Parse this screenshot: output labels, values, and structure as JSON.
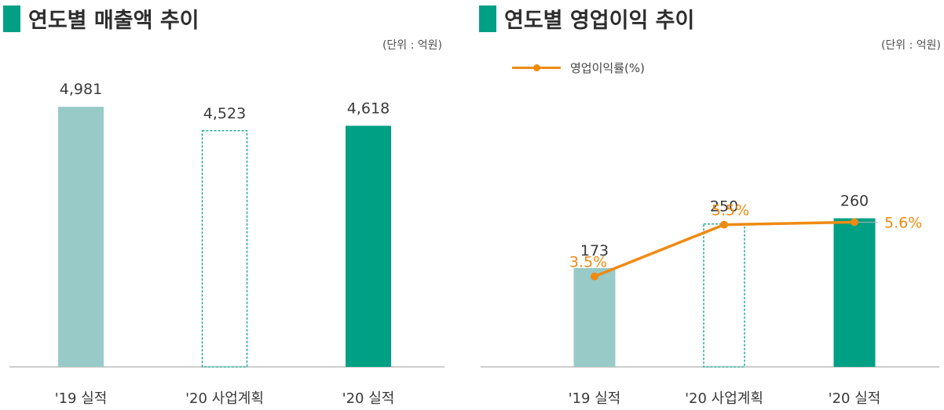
{
  "colors": {
    "accent": "#00a084",
    "bar_2019": "#98cac8",
    "bar_2020_actual": "#00a084",
    "plan_outline": "#00a084",
    "rate_line": "#ef8a11",
    "axis": "#9a9a9a"
  },
  "chart_data": [
    {
      "type": "bar",
      "title": "연도별 매출액 추이",
      "unit": "(단위 : 억원)",
      "categories": [
        "'19 실적",
        "'20 사업계획",
        "'20 실적"
      ],
      "values": [
        4981,
        4523,
        4618
      ],
      "value_labels": [
        "4,981",
        "4,523",
        "4,618"
      ],
      "styles": [
        "filled",
        "outline-dashed",
        "filled"
      ],
      "ylim": [
        0,
        5300
      ],
      "grid": false
    },
    {
      "type": "bar",
      "title": "연도별 영업이익 추이",
      "unit": "(단위 : 억원)",
      "categories": [
        "'19 실적",
        "'20 사업계획",
        "'20 실적"
      ],
      "values": [
        173,
        250,
        260
      ],
      "value_labels": [
        "173",
        "250",
        "260"
      ],
      "styles": [
        "filled",
        "outline-dashed",
        "filled"
      ],
      "ylim": [
        0,
        358
      ],
      "grid": false,
      "legend": {
        "label": "영업이익률(%)",
        "position": "top-left"
      },
      "line_series": {
        "name": "영업이익률(%)",
        "values": [
          3.5,
          5.5,
          5.6
        ],
        "value_labels": [
          "3.5%",
          "5.5%",
          "5.6%"
        ],
        "ylim": [
          0,
          9.4
        ]
      }
    }
  ]
}
